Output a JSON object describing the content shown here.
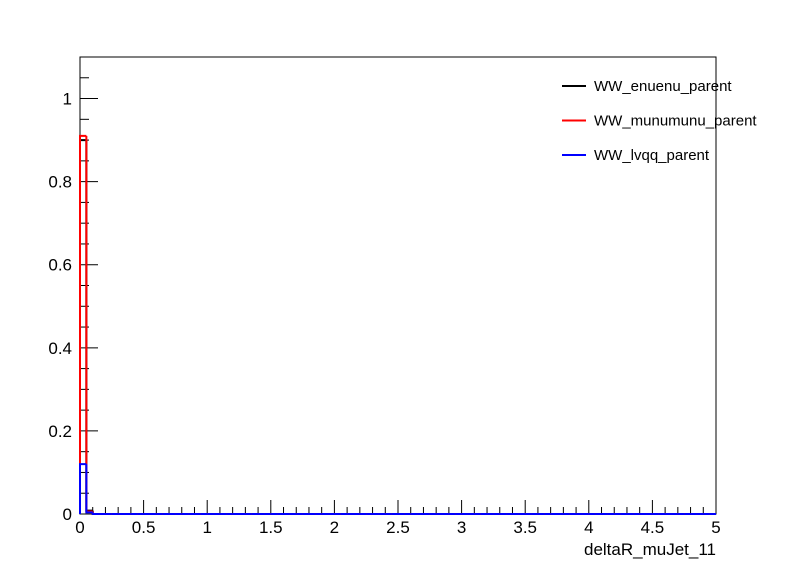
{
  "chart_data": {
    "type": "histogram",
    "x_label": "deltaR_muJet_11",
    "bins": [
      0,
      0.05,
      0.1,
      0.15,
      0.2,
      0.25,
      0.3,
      0.35,
      0.4,
      0.45,
      0.5,
      0.55,
      0.6,
      0.65,
      0.7,
      0.75,
      0.8,
      0.85,
      0.9,
      0.95,
      1,
      1.05,
      1.1,
      1.15,
      1.2,
      1.25,
      1.3,
      1.35,
      1.4,
      1.45,
      1.5,
      1.55,
      1.6,
      1.65,
      1.7,
      1.75,
      1.8,
      1.85,
      1.9,
      1.95,
      2,
      2.05,
      2.1,
      2.15,
      2.2,
      2.25,
      2.3,
      2.35,
      2.4,
      2.45,
      2.5,
      2.55,
      2.6,
      2.65,
      2.7,
      2.75,
      2.8,
      2.85,
      2.9,
      2.95,
      3,
      3.05,
      3.1,
      3.15,
      3.2,
      3.25,
      3.3,
      3.35,
      3.4,
      3.45,
      3.5,
      3.55,
      3.6,
      3.65,
      3.7,
      3.75,
      3.8,
      3.85,
      3.9,
      3.95,
      4,
      4.05,
      4.1,
      4.15,
      4.2,
      4.25,
      4.3,
      4.35,
      4.4,
      4.45,
      4.5,
      4.55,
      4.6,
      4.65,
      4.7,
      4.75,
      4.8,
      4.85,
      4.9,
      4.95,
      5
    ],
    "series": [
      {
        "name": "WW_enuenu_parent",
        "color": "#000000",
        "values": [
          0.9,
          0.008,
          0,
          0,
          0,
          0,
          0,
          0,
          0,
          0,
          0,
          0,
          0,
          0,
          0,
          0,
          0,
          0,
          0,
          0,
          0,
          0,
          0,
          0,
          0,
          0,
          0,
          0,
          0,
          0,
          0,
          0,
          0,
          0,
          0,
          0,
          0,
          0,
          0,
          0,
          0,
          0,
          0,
          0,
          0,
          0,
          0,
          0,
          0,
          0,
          0,
          0,
          0,
          0,
          0,
          0,
          0,
          0,
          0,
          0,
          0,
          0,
          0,
          0,
          0,
          0,
          0,
          0,
          0,
          0,
          0,
          0,
          0,
          0,
          0,
          0,
          0,
          0,
          0,
          0,
          0,
          0,
          0,
          0,
          0,
          0,
          0,
          0,
          0,
          0,
          0,
          0,
          0,
          0,
          0,
          0,
          0,
          0,
          0,
          0
        ]
      },
      {
        "name": "WW_munumunu_parent",
        "color": "#ff0000",
        "values": [
          0.91,
          0.006,
          0,
          0,
          0,
          0,
          0,
          0,
          0,
          0,
          0,
          0,
          0,
          0,
          0,
          0,
          0,
          0,
          0,
          0,
          0,
          0,
          0,
          0,
          0,
          0,
          0,
          0,
          0,
          0,
          0,
          0,
          0,
          0,
          0,
          0,
          0,
          0,
          0,
          0,
          0,
          0,
          0,
          0,
          0,
          0,
          0,
          0,
          0,
          0,
          0,
          0,
          0,
          0,
          0,
          0,
          0,
          0,
          0,
          0,
          0,
          0,
          0,
          0,
          0,
          0,
          0,
          0,
          0,
          0,
          0,
          0,
          0,
          0,
          0,
          0,
          0,
          0,
          0,
          0,
          0,
          0,
          0,
          0,
          0,
          0,
          0,
          0,
          0,
          0,
          0,
          0,
          0,
          0,
          0,
          0,
          0,
          0,
          0,
          0
        ]
      },
      {
        "name": "WW_lvqq_parent",
        "color": "#0000ff",
        "values": [
          0.12,
          0.004,
          0,
          0,
          0,
          0,
          0,
          0,
          0,
          0,
          0,
          0,
          0,
          0,
          0,
          0,
          0,
          0,
          0,
          0,
          0,
          0,
          0,
          0,
          0,
          0,
          0,
          0,
          0,
          0,
          0,
          0,
          0,
          0,
          0,
          0,
          0,
          0,
          0,
          0,
          0,
          0,
          0,
          0,
          0,
          0,
          0,
          0,
          0,
          0,
          0,
          0,
          0,
          0,
          0,
          0,
          0,
          0,
          0,
          0,
          0,
          0,
          0,
          0,
          0,
          0,
          0,
          0,
          0,
          0,
          0,
          0,
          0,
          0,
          0,
          0,
          0,
          0,
          0,
          0,
          0,
          0,
          0,
          0,
          0,
          0,
          0,
          0,
          0,
          0,
          0,
          0,
          0,
          0,
          0,
          0,
          0,
          0,
          0,
          0
        ]
      }
    ],
    "xlim": [
      0,
      5
    ],
    "ylim": [
      0,
      1.1
    ],
    "xticks": [
      0,
      0.5,
      1,
      1.5,
      2,
      2.5,
      3,
      3.5,
      4,
      4.5,
      5
    ],
    "yticks": [
      0,
      0.2,
      0.4,
      0.6,
      0.8,
      1
    ],
    "grid": false,
    "legend": "upper right"
  }
}
